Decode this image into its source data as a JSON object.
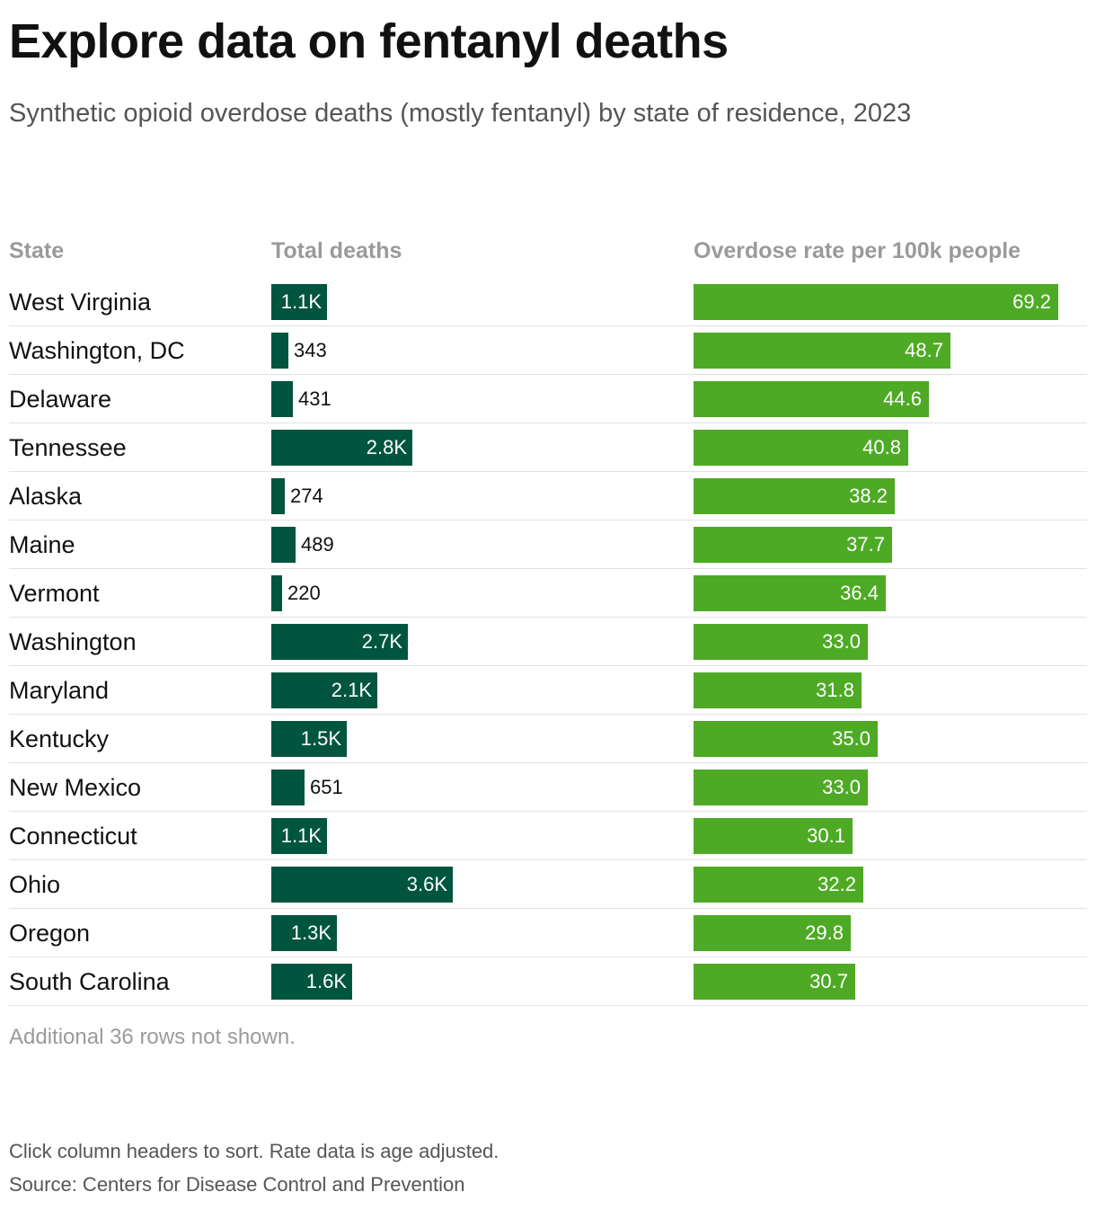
{
  "title": "Explore data on fentanyl deaths",
  "subtitle": "Synthetic opioid overdose deaths (mostly fentanyl) by state of residence, 2023",
  "columns": {
    "state": "State",
    "deaths": "Total deaths",
    "rate": "Overdose rate per 100k people"
  },
  "colors": {
    "deaths_bar": "#00553f",
    "rate_bar": "#4eaa25"
  },
  "chart_data": {
    "type": "table",
    "title": "Explore data on fentanyl deaths",
    "subtitle": "Synthetic opioid overdose deaths (mostly fentanyl) by state of residence, 2023",
    "columns": [
      "State",
      "Total deaths",
      "Overdose rate per 100k people"
    ],
    "deaths_max": 3600,
    "rate_max": 69.2,
    "rows": [
      {
        "state": "West Virginia",
        "deaths": 1100,
        "deaths_label": "1.1K",
        "rate": 69.2,
        "rate_label": "69.2"
      },
      {
        "state": "Washington, DC",
        "deaths": 343,
        "deaths_label": "343",
        "rate": 48.7,
        "rate_label": "48.7"
      },
      {
        "state": "Delaware",
        "deaths": 431,
        "deaths_label": "431",
        "rate": 44.6,
        "rate_label": "44.6"
      },
      {
        "state": "Tennessee",
        "deaths": 2800,
        "deaths_label": "2.8K",
        "rate": 40.8,
        "rate_label": "40.8"
      },
      {
        "state": "Alaska",
        "deaths": 274,
        "deaths_label": "274",
        "rate": 38.2,
        "rate_label": "38.2"
      },
      {
        "state": "Maine",
        "deaths": 489,
        "deaths_label": "489",
        "rate": 37.7,
        "rate_label": "37.7"
      },
      {
        "state": "Vermont",
        "deaths": 220,
        "deaths_label": "220",
        "rate": 36.4,
        "rate_label": "36.4"
      },
      {
        "state": "Washington",
        "deaths": 2700,
        "deaths_label": "2.7K",
        "rate": 33.0,
        "rate_label": "33.0"
      },
      {
        "state": "Maryland",
        "deaths": 2100,
        "deaths_label": "2.1K",
        "rate": 31.8,
        "rate_label": "31.8"
      },
      {
        "state": "Kentucky",
        "deaths": 1500,
        "deaths_label": "1.5K",
        "rate": 35.0,
        "rate_label": "35.0"
      },
      {
        "state": "New Mexico",
        "deaths": 651,
        "deaths_label": "651",
        "rate": 33.0,
        "rate_label": "33.0"
      },
      {
        "state": "Connecticut",
        "deaths": 1100,
        "deaths_label": "1.1K",
        "rate": 30.1,
        "rate_label": "30.1"
      },
      {
        "state": "Ohio",
        "deaths": 3600,
        "deaths_label": "3.6K",
        "rate": 32.2,
        "rate_label": "32.2"
      },
      {
        "state": "Oregon",
        "deaths": 1300,
        "deaths_label": "1.3K",
        "rate": 29.8,
        "rate_label": "29.8"
      },
      {
        "state": "South Carolina",
        "deaths": 1600,
        "deaths_label": "1.6K",
        "rate": 30.7,
        "rate_label": "30.7"
      }
    ]
  },
  "more_rows": "Additional 36 rows not shown.",
  "footer": {
    "note": "Click column headers to sort. Rate data is age adjusted.",
    "source": "Source: Centers for Disease Control and Prevention"
  }
}
